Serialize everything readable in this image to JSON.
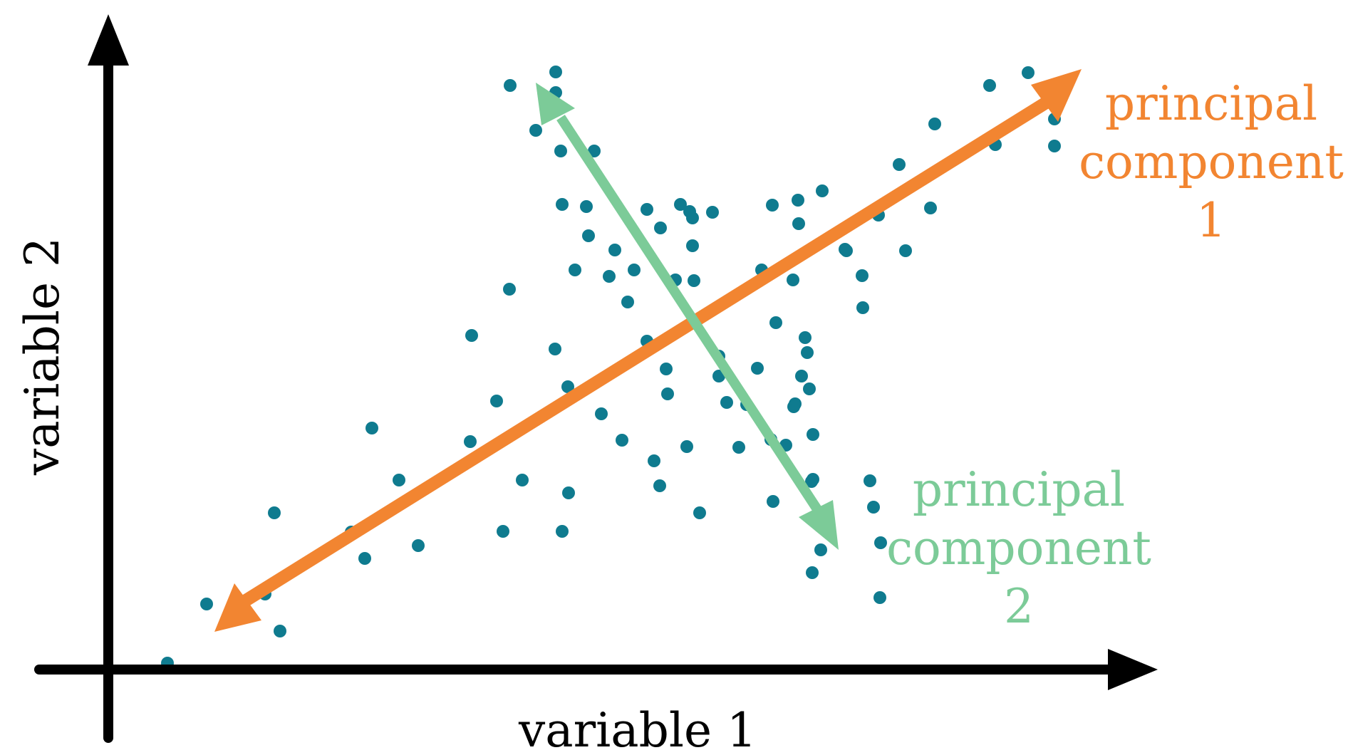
{
  "axes": {
    "x_label": "variable 1",
    "y_label": "variable 2"
  },
  "components": [
    {
      "lines": [
        "principal",
        "component",
        "1"
      ],
      "color": "#f28531"
    },
    {
      "lines": [
        "principal",
        "component",
        "2"
      ],
      "color": "#7ccb98"
    }
  ],
  "colors": {
    "points": "#0f7b8f",
    "axes": "#000000"
  }
}
